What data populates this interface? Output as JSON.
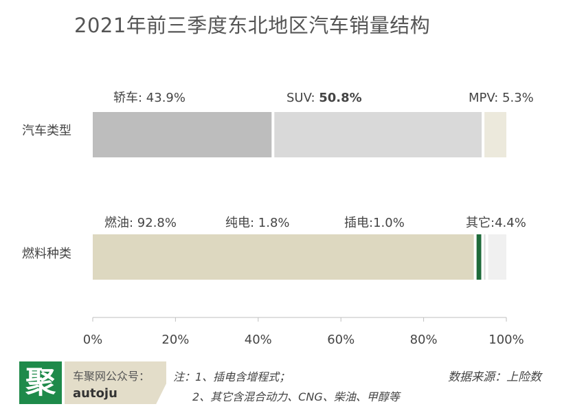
{
  "title": "2021年前三季度东北地区汽车销量结构",
  "chart_data": {
    "type": "bar",
    "orientation": "horizontal",
    "stacked": true,
    "xlim": [
      0,
      100
    ],
    "x_ticks": [
      "0%",
      "20%",
      "40%",
      "60%",
      "80%",
      "100%"
    ],
    "rows": [
      {
        "category": "汽车类型",
        "segments": [
          {
            "name": "轿车",
            "value": 43.9,
            "label": "轿车: 43.9%",
            "color": "#bdbdbd",
            "bold": false
          },
          {
            "name": "SUV",
            "value": 50.8,
            "label_name": "SUV: ",
            "label_value": "50.8%",
            "color": "#d9d9d9",
            "bold": true
          },
          {
            "name": "MPV",
            "value": 5.3,
            "label": "MPV: 5.3%",
            "color": "#ece9dc",
            "bold": false
          }
        ]
      },
      {
        "category": "燃料种类",
        "segments": [
          {
            "name": "燃油",
            "value": 92.8,
            "label": "燃油: 92.8%",
            "color": "#ddd8c0",
            "bold": false
          },
          {
            "name": "纯电",
            "value": 1.8,
            "label": "纯电: 1.8%",
            "color": "#1f6b3a",
            "bold": false
          },
          {
            "name": "插电",
            "value": 1.0,
            "label": "插电:1.0%",
            "color": "#dcdcdc",
            "bold": false
          },
          {
            "name": "其它",
            "value": 4.4,
            "label": "其它:4.4%",
            "color": "#f0f0f0",
            "bold": false
          }
        ]
      }
    ],
    "grid": false,
    "legend": "none"
  },
  "footer": {
    "logo_char": "聚",
    "account_label": "车聚网公众号：",
    "account_id": "autoju",
    "note_line1": "注：1、插电含增程式；",
    "note_line2": "2、其它含混合动力、CNG、柴油、甲醇等",
    "source": "数据来源：上险数"
  }
}
